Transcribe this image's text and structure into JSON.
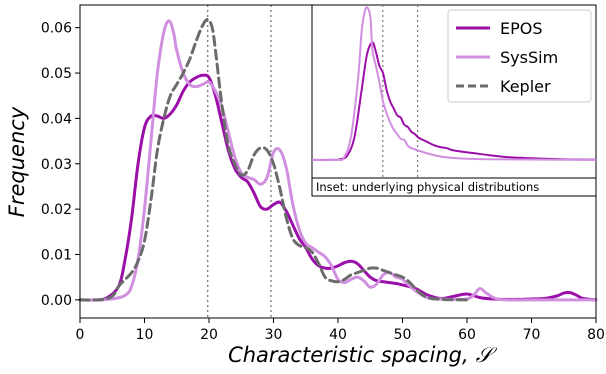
{
  "chart_data": [
    {
      "type": "line",
      "xlabel": "Characteristic spacing,",
      "xlabel_symbol": "𝒮",
      "ylabel": "Frequency",
      "xlim": [
        0,
        80
      ],
      "ylim": [
        -0.004,
        0.065
      ],
      "xticks": [
        "0",
        "10",
        "20",
        "30",
        "40",
        "50",
        "60",
        "70",
        "80"
      ],
      "yticks": [
        "0.00",
        "0.01",
        "0.02",
        "0.03",
        "0.04",
        "0.05",
        "0.06"
      ],
      "grid": false,
      "legend_position": "inset",
      "vlines": [
        19.8,
        29.6
      ],
      "colors": {
        "EPOS": "#9b0fa8",
        "SysSim": "#d18fe0",
        "Kepler": "#6b6b6b"
      },
      "series": [
        {
          "name": "EPOS",
          "x": [
            0,
            2,
            4,
            6,
            7,
            8,
            9,
            10,
            11,
            12,
            13,
            14,
            15,
            16,
            17,
            18,
            19,
            20,
            21,
            22,
            23,
            24,
            25,
            26,
            27,
            28,
            29,
            30,
            31,
            32,
            33,
            34,
            35,
            36,
            37,
            38,
            39,
            40,
            41,
            42,
            43,
            44,
            45,
            46,
            47,
            48,
            49,
            50,
            52,
            54,
            56,
            58,
            60,
            62,
            64,
            66,
            68,
            70,
            72,
            74,
            75,
            76,
            77,
            78,
            80
          ],
          "values": [
            0.0,
            0.0,
            0.0003,
            0.003,
            0.009,
            0.018,
            0.03,
            0.038,
            0.0405,
            0.0405,
            0.04,
            0.041,
            0.043,
            0.046,
            0.048,
            0.049,
            0.0495,
            0.049,
            0.045,
            0.039,
            0.033,
            0.029,
            0.027,
            0.026,
            0.0235,
            0.0205,
            0.02,
            0.021,
            0.0215,
            0.0195,
            0.0165,
            0.0135,
            0.0115,
            0.009,
            0.0075,
            0.007,
            0.007,
            0.0075,
            0.0082,
            0.0085,
            0.008,
            0.0065,
            0.005,
            0.0042,
            0.004,
            0.0038,
            0.0036,
            0.0033,
            0.0025,
            0.001,
            0.0003,
            0.0008,
            0.0013,
            0.0005,
            0.0002,
            0.0001,
            0.0001,
            0.0002,
            0.0003,
            0.0009,
            0.0015,
            0.0016,
            0.001,
            0.0003,
            0.0
          ]
        },
        {
          "name": "SysSim",
          "x": [
            0,
            3,
            5,
            7,
            8,
            9,
            10,
            11,
            12,
            13,
            13.8,
            14.5,
            15,
            16,
            17,
            18,
            19,
            20,
            21,
            22,
            23,
            24,
            25,
            26,
            27,
            28,
            29,
            30,
            31,
            32,
            33,
            34,
            35,
            36,
            37,
            38,
            39,
            40,
            41,
            42,
            43,
            44,
            45,
            46,
            47,
            48,
            49,
            50,
            52,
            54,
            56,
            58,
            60,
            61,
            62,
            63,
            65,
            70,
            80
          ],
          "values": [
            0.0,
            0.0,
            0.0002,
            0.001,
            0.003,
            0.009,
            0.02,
            0.035,
            0.05,
            0.059,
            0.0615,
            0.059,
            0.055,
            0.05,
            0.0475,
            0.047,
            0.0475,
            0.048,
            0.046,
            0.0425,
            0.037,
            0.0315,
            0.028,
            0.027,
            0.0265,
            0.0255,
            0.027,
            0.0325,
            0.033,
            0.029,
            0.021,
            0.0155,
            0.0125,
            0.0115,
            0.0105,
            0.0095,
            0.0075,
            0.0045,
            0.0038,
            0.0045,
            0.005,
            0.0042,
            0.0028,
            0.0035,
            0.0055,
            0.006,
            0.005,
            0.0045,
            0.002,
            0.0004,
            0.0002,
            0.0001,
            0.0002,
            0.001,
            0.0025,
            0.0015,
            0.0001,
            0.0,
            0.0
          ]
        },
        {
          "name": "Kepler",
          "x": [
            0,
            3,
            5,
            6,
            7,
            8,
            9,
            10,
            11,
            12,
            13,
            14,
            15,
            16,
            17,
            18,
            19,
            19.8,
            20.5,
            21,
            22,
            23,
            24,
            25,
            26,
            27,
            28,
            29,
            30,
            31,
            32,
            33,
            34,
            35,
            36,
            37,
            38,
            39,
            40,
            41,
            42,
            43,
            44,
            45,
            46,
            47,
            48,
            49,
            50,
            51,
            52,
            53,
            54,
            56,
            60
          ],
          "values": [
            0.0,
            0.0,
            0.0008,
            0.003,
            0.0045,
            0.006,
            0.0085,
            0.013,
            0.022,
            0.033,
            0.04,
            0.045,
            0.0475,
            0.05,
            0.053,
            0.057,
            0.0605,
            0.0618,
            0.06,
            0.055,
            0.043,
            0.034,
            0.03,
            0.0275,
            0.0285,
            0.032,
            0.0335,
            0.033,
            0.03,
            0.0245,
            0.018,
            0.0135,
            0.012,
            0.0115,
            0.0105,
            0.008,
            0.005,
            0.0042,
            0.004,
            0.0045,
            0.0055,
            0.006,
            0.0065,
            0.007,
            0.007,
            0.0065,
            0.006,
            0.0055,
            0.005,
            0.004,
            0.0025,
            0.0012,
            0.0005,
            0.0001,
            0.0
          ]
        }
      ]
    },
    {
      "type": "line",
      "caption": "Inset: underlying physical distributions",
      "vlines": [
        19.8,
        29.6
      ],
      "series": [
        {
          "name": "EPOS",
          "x": [
            0,
            5,
            8,
            10,
            12,
            14,
            15.5,
            17,
            18,
            19,
            20,
            21,
            22,
            23,
            24,
            25,
            26,
            27,
            28,
            29,
            30,
            32,
            34,
            36,
            38,
            40,
            45,
            50,
            55,
            60,
            70,
            80
          ],
          "values": [
            0.0,
            0.0,
            0.0003,
            0.002,
            0.01,
            0.03,
            0.045,
            0.05,
            0.046,
            0.04,
            0.037,
            0.03,
            0.025,
            0.022,
            0.019,
            0.018,
            0.015,
            0.014,
            0.012,
            0.011,
            0.0095,
            0.008,
            0.0065,
            0.0055,
            0.005,
            0.004,
            0.003,
            0.002,
            0.0012,
            0.0008,
            0.0003,
            0.0001
          ]
        },
        {
          "name": "SysSim",
          "x": [
            0,
            7,
            9,
            11,
            13,
            14,
            15,
            15.8,
            16.5,
            17,
            18,
            19,
            20,
            21,
            22,
            23,
            24,
            25,
            26,
            27,
            28,
            30,
            32,
            34,
            36,
            40,
            50,
            80
          ],
          "values": [
            0.0,
            0.0,
            0.001,
            0.01,
            0.035,
            0.055,
            0.064,
            0.0645,
            0.06,
            0.047,
            0.04,
            0.033,
            0.025,
            0.02,
            0.016,
            0.013,
            0.011,
            0.009,
            0.0085,
            0.006,
            0.005,
            0.004,
            0.003,
            0.0022,
            0.0015,
            0.0008,
            0.0003,
            0.0
          ]
        }
      ]
    }
  ]
}
